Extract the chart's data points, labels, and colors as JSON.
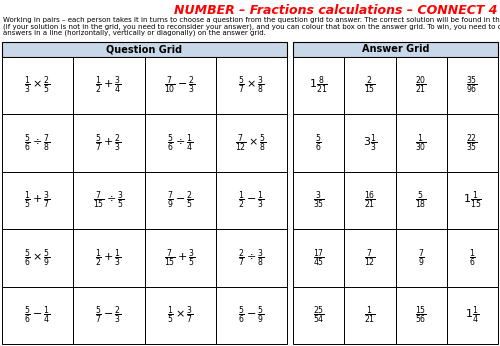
{
  "title": "NUMBER – Fractions calculations – CONNECT 4",
  "title_color": "#ff0000",
  "instructions_line1": "Working in pairs – each person takes it in turns to choose a question from the question grid to answer. The correct solution will be found in the answer grid",
  "instructions_line2": "(if your solution is not in the grid, you need to reconsider your answer), and you can colour that box on the answer grid. To win, you need to connect four",
  "instructions_line3": "answers in a line (horizontally, vertically or diagonally) on the answer grid.",
  "question_grid_title": "Question Grid",
  "answer_grid_title": "Answer Grid",
  "header_bg": "#c8d8e8",
  "question_cells": [
    [
      "\\frac{1}{3}\\times\\frac{2}{5}",
      "\\frac{1}{2}+\\frac{3}{4}",
      "\\frac{7}{10}-\\frac{2}{3}",
      "\\frac{5}{7}\\times\\frac{3}{8}"
    ],
    [
      "\\frac{5}{6}\\div\\frac{7}{8}",
      "\\frac{5}{7}+\\frac{2}{3}",
      "\\frac{5}{6}\\div\\frac{1}{4}",
      "\\frac{7}{12}\\times\\frac{5}{8}"
    ],
    [
      "\\frac{1}{5}+\\frac{3}{7}",
      "\\frac{7}{15}\\div\\frac{3}{5}",
      "\\frac{7}{9}-\\frac{2}{5}",
      "\\frac{1}{2}-\\frac{1}{3}"
    ],
    [
      "\\frac{5}{6}\\times\\frac{5}{9}",
      "\\frac{1}{2}+\\frac{1}{3}",
      "\\frac{7}{15}+\\frac{3}{5}",
      "\\frac{2}{7}\\div\\frac{3}{8}"
    ],
    [
      "\\frac{5}{6}-\\frac{1}{4}",
      "\\frac{5}{7}-\\frac{2}{3}",
      "\\frac{1}{5}\\times\\frac{3}{7}",
      "\\frac{5}{6}-\\frac{5}{9}"
    ]
  ],
  "answer_cells": [
    [
      "1\\frac{8}{21}",
      "\\frac{2}{15}",
      "\\frac{20}{21}",
      "\\frac{35}{96}"
    ],
    [
      "\\frac{5}{6}",
      "3\\frac{1}{3}",
      "\\frac{1}{30}",
      "\\frac{22}{35}"
    ],
    [
      "\\frac{3}{35}",
      "\\frac{16}{21}",
      "\\frac{5}{18}",
      "1\\frac{1}{15}"
    ],
    [
      "\\frac{17}{45}",
      "\\frac{7}{12}",
      "\\frac{7}{9}",
      "\\frac{1}{6}"
    ],
    [
      "\\frac{25}{54}",
      "\\frac{1}{21}",
      "\\frac{15}{56}",
      "1\\frac{1}{4}"
    ]
  ],
  "title_fontsize": 9,
  "instruction_fontsize": 5.0,
  "header_fontsize": 7,
  "cell_fontsize": 8,
  "answer_fontsize": 8
}
